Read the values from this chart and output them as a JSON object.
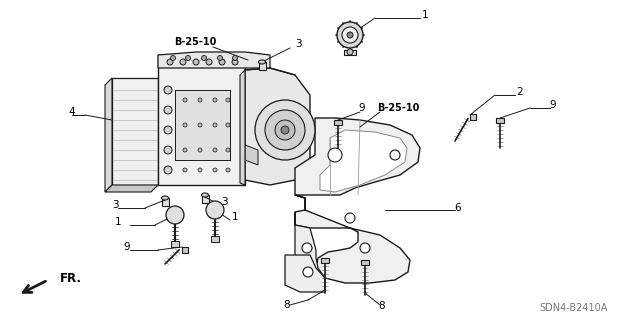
{
  "bg_color": "#ffffff",
  "lc": "#1a1a1a",
  "fig_width": 6.4,
  "fig_height": 3.19,
  "dpi": 100,
  "watermark": "SDN4-B2410A",
  "label_fs": 7.5,
  "bold_labels": [
    "B-25-10"
  ],
  "part_numbers": [
    "1",
    "2",
    "3",
    "4",
    "6",
    "8",
    "9"
  ]
}
